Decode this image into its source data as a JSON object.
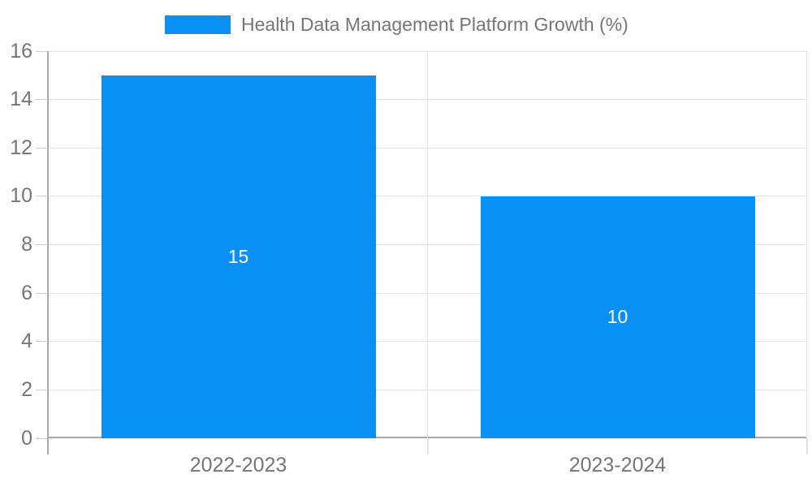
{
  "colors": {
    "bar": "#0a90f5",
    "axis_text": "#757575",
    "axis_line": "#a8a8a8",
    "gridline": "#e3e3e3",
    "tick": "#cccccc",
    "bar_label": "#ffffff",
    "background": "#ffffff"
  },
  "legend": {
    "label": "Health Data Management Platform Growth (%)",
    "swatch": "legend-color-swatch"
  },
  "chart_data": {
    "type": "bar",
    "title": "Health Data Management Platform Growth (%)",
    "categories": [
      "2022-2023",
      "2023-2024"
    ],
    "values": [
      15,
      10
    ],
    "data_labels": [
      "15",
      "10"
    ],
    "xlabel": "",
    "ylabel": "",
    "ylim": [
      0,
      16
    ],
    "yticks": [
      0,
      2,
      4,
      6,
      8,
      10,
      12,
      14,
      16
    ],
    "grid": true,
    "legend_position": "top",
    "series_color": "#0a90f5"
  }
}
